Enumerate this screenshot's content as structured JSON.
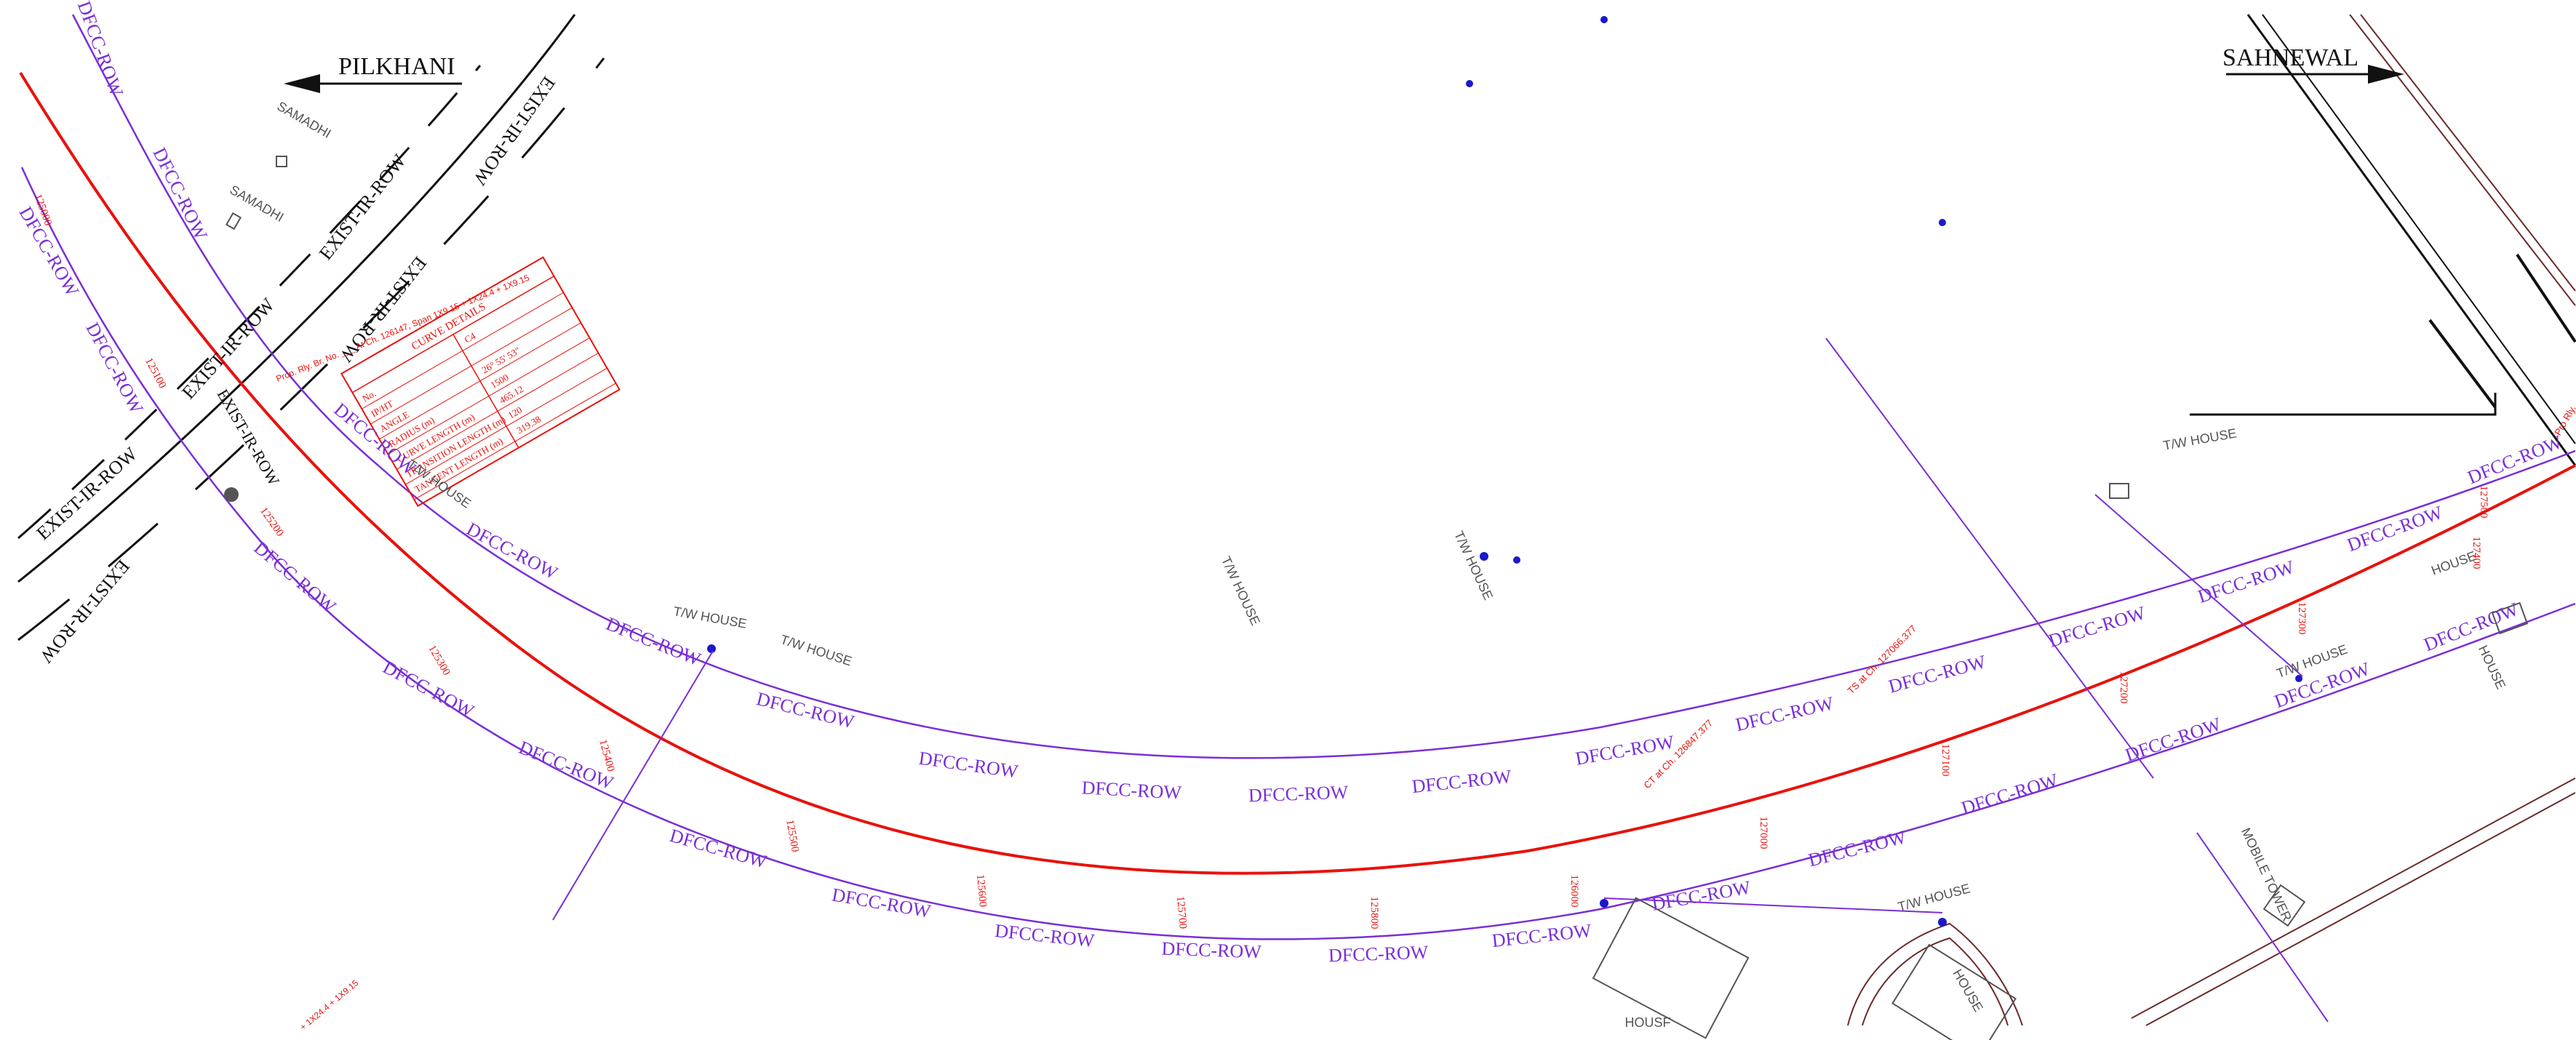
{
  "colors": {
    "alignment": "#e8120c",
    "dfcc_row": "#7a2fd6",
    "exist_row": "#111111",
    "features": "#555555",
    "points": "#1a1acc",
    "boundary": "#6b2b2b"
  },
  "direction_labels": {
    "left": "PILKHANI",
    "right": "SAHNEWAL"
  },
  "row_labels": {
    "dfcc": "DFCC-ROW",
    "exist": "EXIST-IR-ROW",
    "exist_mirrored": "WOR-RI-TSIXE",
    "exist_short": "EXIST-IR-ROW"
  },
  "feature_labels": {
    "samadhi": "SAMADHI",
    "tw_house": "T/W HOUSE",
    "house": "HOUSE",
    "house_partial": "HOUSF",
    "mobile_tower": "MOBILE TOWER"
  },
  "chainages": [
    "125000",
    "125100",
    "125200",
    "125300",
    "125400",
    "125500",
    "125600",
    "125700",
    "125800",
    "126000",
    "127000",
    "127100",
    "127200",
    "127300",
    "127400",
    "127500"
  ],
  "callouts": {
    "bridge": "Prop. Rly. Br. No. ___ At Ch. 126147, Span 1X9.15 + 1X24.4 + 1X9.15",
    "span_bottom": "+ 1X24.4 + 1X9.15",
    "ct_point": "CT at Ch. 126847.377",
    "ts_point": "TS at Ch. 127066.377",
    "right_edge": "Pro Rly."
  },
  "curve_table": {
    "title": "CURVE DETAILS",
    "rows": [
      {
        "label": "No.",
        "value": "C4"
      },
      {
        "label": "IP/HT",
        "value": ""
      },
      {
        "label": "ANGLE",
        "value": "26° 55' 53\""
      },
      {
        "label": "RADIUS (m)",
        "value": "1500"
      },
      {
        "label": "CURVE LENGTH (m)",
        "value": "465.12"
      },
      {
        "label": "TRANSITION LENGTH (m)",
        "value": "120"
      },
      {
        "label": "TANGENT LENGTH (m)",
        "value": "319.38"
      }
    ]
  }
}
